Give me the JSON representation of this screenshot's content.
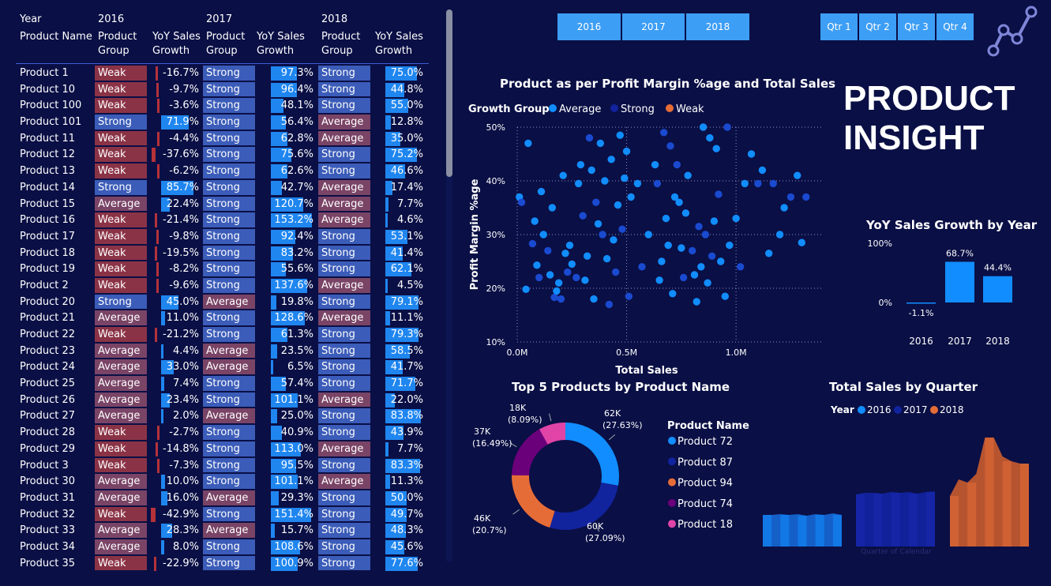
{
  "table": {
    "headers": {
      "year": "Year",
      "product_name": "Product Name",
      "years": [
        "2016",
        "2017",
        "2018"
      ],
      "product_group": [
        "Product",
        "Group"
      ],
      "yoy": [
        "YoY Sales",
        "Growth"
      ]
    },
    "rows": [
      [
        "Product 1",
        "Weak",
        "-16.7%",
        "Strong",
        "97.3%",
        "Strong",
        "75.0%"
      ],
      [
        "Product 10",
        "Weak",
        "-9.7%",
        "Strong",
        "96.4%",
        "Strong",
        "44.8%"
      ],
      [
        "Product 100",
        "Weak",
        "-3.6%",
        "Strong",
        "48.1%",
        "Strong",
        "55.0%"
      ],
      [
        "Product 101",
        "Strong",
        "71.9%",
        "Strong",
        "56.4%",
        "Average",
        "12.8%"
      ],
      [
        "Product 11",
        "Weak",
        "-4.4%",
        "Strong",
        "62.8%",
        "Average",
        "35.0%"
      ],
      [
        "Product 12",
        "Weak",
        "-37.6%",
        "Strong",
        "75.6%",
        "Strong",
        "75.2%"
      ],
      [
        "Product 13",
        "Weak",
        "-6.2%",
        "Strong",
        "62.6%",
        "Strong",
        "46.6%"
      ],
      [
        "Product 14",
        "Strong",
        "85.7%",
        "Strong",
        "42.7%",
        "Average",
        "17.4%"
      ],
      [
        "Product 15",
        "Average",
        "22.4%",
        "Strong",
        "120.7%",
        "Average",
        "7.7%"
      ],
      [
        "Product 16",
        "Weak",
        "-21.4%",
        "Strong",
        "153.2%",
        "Average",
        "4.6%"
      ],
      [
        "Product 17",
        "Weak",
        "-9.8%",
        "Strong",
        "92.4%",
        "Strong",
        "53.1%"
      ],
      [
        "Product 18",
        "Weak",
        "-19.5%",
        "Strong",
        "83.2%",
        "Strong",
        "41.4%"
      ],
      [
        "Product 19",
        "Weak",
        "-8.2%",
        "Strong",
        "55.6%",
        "Strong",
        "62.1%"
      ],
      [
        "Product 2",
        "Weak",
        "-9.6%",
        "Strong",
        "137.6%",
        "Average",
        "4.5%"
      ],
      [
        "Product 20",
        "Strong",
        "45.0%",
        "Average",
        "19.8%",
        "Strong",
        "79.1%"
      ],
      [
        "Product 21",
        "Average",
        "11.0%",
        "Strong",
        "128.6%",
        "Average",
        "11.1%"
      ],
      [
        "Product 22",
        "Weak",
        "-21.2%",
        "Strong",
        "61.3%",
        "Strong",
        "79.3%"
      ],
      [
        "Product 23",
        "Average",
        "4.4%",
        "Average",
        "23.5%",
        "Strong",
        "58.5%"
      ],
      [
        "Product 24",
        "Average",
        "33.0%",
        "Average",
        "6.5%",
        "Strong",
        "41.7%"
      ],
      [
        "Product 25",
        "Average",
        "7.4%",
        "Strong",
        "57.4%",
        "Strong",
        "71.7%"
      ],
      [
        "Product 26",
        "Average",
        "23.4%",
        "Strong",
        "101.1%",
        "Average",
        "22.0%"
      ],
      [
        "Product 27",
        "Average",
        "2.0%",
        "Average",
        "25.0%",
        "Strong",
        "83.8%"
      ],
      [
        "Product 28",
        "Weak",
        "-2.7%",
        "Strong",
        "40.9%",
        "Strong",
        "43.9%"
      ],
      [
        "Product 29",
        "Weak",
        "-14.8%",
        "Strong",
        "113.0%",
        "Average",
        "7.7%"
      ],
      [
        "Product 3",
        "Weak",
        "-7.3%",
        "Strong",
        "95.5%",
        "Strong",
        "83.3%"
      ],
      [
        "Product 30",
        "Average",
        "10.0%",
        "Strong",
        "101.1%",
        "Average",
        "11.3%"
      ],
      [
        "Product 31",
        "Average",
        "16.0%",
        "Average",
        "29.3%",
        "Strong",
        "50.0%"
      ],
      [
        "Product 32",
        "Weak",
        "-42.9%",
        "Strong",
        "151.4%",
        "Strong",
        "49.7%"
      ],
      [
        "Product 33",
        "Average",
        "28.3%",
        "Average",
        "15.7%",
        "Strong",
        "48.3%"
      ],
      [
        "Product 34",
        "Average",
        "8.0%",
        "Strong",
        "108.6%",
        "Strong",
        "45.6%"
      ],
      [
        "Product 35",
        "Weak",
        "-22.9%",
        "Strong",
        "100.9%",
        "Strong",
        "77.6%"
      ]
    ]
  },
  "slicers": {
    "years": [
      "2016",
      "2017",
      "2018"
    ],
    "quarters": [
      "Qtr 1",
      "Qtr 2",
      "Qtr 3",
      "Qtr 4"
    ]
  },
  "dashboard_title": [
    "PRODUCT",
    "INSIGHT"
  ],
  "colors": {
    "background": "#0a0f45",
    "average": "#118dff",
    "strong": "#12239e",
    "weak": "#e66c37",
    "product74": "#6b007b",
    "product18": "#e044a7",
    "weak_cell": "#8b3346",
    "strong_cell": "#3b5cb8",
    "average_cell": "#7a4466"
  },
  "chart_data": [
    {
      "type": "scatter",
      "title": "Product as per Profit Margin %age and Total Sales",
      "xlabel": "Total Sales",
      "ylabel": "Profit Margin %age",
      "xlim": [
        0,
        1.4
      ],
      "ylim": [
        10,
        50
      ],
      "x_ticks": [
        "0.0M",
        "0.5M",
        "1.0M"
      ],
      "y_ticks": [
        "10%",
        "20%",
        "30%",
        "40%",
        "50%"
      ],
      "grid": true,
      "legend_title": "Growth Group",
      "legend": [
        "Average",
        "Strong",
        "Weak"
      ],
      "legend_placement": "top-left",
      "points": [
        [
          0.01,
          37
        ],
        [
          0.02,
          36
        ],
        [
          0.04,
          19.8
        ],
        [
          0.05,
          47
        ],
        [
          0.07,
          28.3
        ],
        [
          0.08,
          32.5
        ],
        [
          0.09,
          24.3
        ],
        [
          0.1,
          22
        ],
        [
          0.11,
          38
        ],
        [
          0.12,
          30
        ],
        [
          0.14,
          27
        ],
        [
          0.15,
          22.5
        ],
        [
          0.16,
          35
        ],
        [
          0.17,
          18.3
        ],
        [
          0.18,
          19.5
        ],
        [
          0.19,
          21
        ],
        [
          0.2,
          18
        ],
        [
          0.21,
          41
        ],
        [
          0.22,
          26.5
        ],
        [
          0.23,
          23
        ],
        [
          0.24,
          28
        ],
        [
          0.25,
          24.5
        ],
        [
          0.27,
          22
        ],
        [
          0.28,
          39.5
        ],
        [
          0.29,
          43
        ],
        [
          0.3,
          33.5
        ],
        [
          0.31,
          21.5
        ],
        [
          0.32,
          26
        ],
        [
          0.33,
          48
        ],
        [
          0.34,
          42
        ],
        [
          0.35,
          18
        ],
        [
          0.36,
          36
        ],
        [
          0.37,
          32
        ],
        [
          0.38,
          47
        ],
        [
          0.39,
          30
        ],
        [
          0.4,
          40
        ],
        [
          0.41,
          25.5
        ],
        [
          0.42,
          17
        ],
        [
          0.43,
          44
        ],
        [
          0.44,
          29
        ],
        [
          0.45,
          23
        ],
        [
          0.46,
          35.5
        ],
        [
          0.47,
          48.5
        ],
        [
          0.48,
          31
        ],
        [
          0.49,
          40.5
        ],
        [
          0.5,
          45.5
        ],
        [
          0.51,
          18.5
        ],
        [
          0.52,
          37
        ],
        [
          0.55,
          39.5
        ],
        [
          0.57,
          24
        ],
        [
          0.6,
          30
        ],
        [
          0.63,
          43
        ],
        [
          0.64,
          39.5
        ],
        [
          0.65,
          21.5
        ],
        [
          0.66,
          25
        ],
        [
          0.67,
          49
        ],
        [
          0.68,
          33
        ],
        [
          0.69,
          28
        ],
        [
          0.7,
          46.5
        ],
        [
          0.71,
          19
        ],
        [
          0.72,
          37
        ],
        [
          0.73,
          43
        ],
        [
          0.74,
          36
        ],
        [
          0.75,
          27.5
        ],
        [
          0.76,
          22
        ],
        [
          0.77,
          34
        ],
        [
          0.78,
          41
        ],
        [
          0.8,
          27
        ],
        [
          0.81,
          22.5
        ],
        [
          0.82,
          17.5
        ],
        [
          0.83,
          31.5
        ],
        [
          0.84,
          24
        ],
        [
          0.85,
          50
        ],
        [
          0.86,
          30
        ],
        [
          0.87,
          21
        ],
        [
          0.88,
          48
        ],
        [
          0.89,
          26
        ],
        [
          0.9,
          32.5
        ],
        [
          0.91,
          46
        ],
        [
          0.92,
          37.5
        ],
        [
          0.93,
          25
        ],
        [
          0.95,
          18.5
        ],
        [
          0.96,
          50
        ],
        [
          0.97,
          28
        ],
        [
          1.0,
          33
        ],
        [
          1.02,
          24
        ],
        [
          1.04,
          39.5
        ],
        [
          1.07,
          45
        ],
        [
          1.1,
          39.5
        ],
        [
          1.12,
          42
        ],
        [
          1.15,
          26.5
        ],
        [
          1.17,
          39.5
        ],
        [
          1.2,
          30
        ],
        [
          1.22,
          35
        ],
        [
          1.25,
          37
        ],
        [
          1.28,
          41
        ],
        [
          1.3,
          28.5
        ],
        [
          1.32,
          37
        ]
      ]
    },
    {
      "type": "bar",
      "title": "YoY Sales Growth by Year",
      "categories": [
        "2016",
        "2017",
        "2018"
      ],
      "values": [
        -1.1,
        68.7,
        44.4
      ],
      "data_labels": [
        "-1.1%",
        "68.7%",
        "44.4%"
      ],
      "y_ticks": [
        "100%",
        "0%"
      ],
      "ylim": [
        -20,
        100
      ]
    },
    {
      "type": "pie",
      "title": "Top 5 Products by Product Name",
      "legend_title": "Product Name",
      "labels": [
        "Product 72",
        "Product 87",
        "Product 94",
        "Product 74",
        "Product 18"
      ],
      "values": [
        62,
        60,
        46,
        37,
        18
      ],
      "percentages": [
        "27.63%",
        "27.09%",
        "20.7%",
        "16.49%",
        "8.09%"
      ],
      "value_labels": [
        "62K",
        "60K",
        "46K",
        "37K",
        "18K"
      ]
    },
    {
      "type": "area",
      "title": "Total Sales by Quarter",
      "legend_title": "Year",
      "legend": [
        "2016",
        "2017",
        "2018"
      ],
      "xlabel": "Quarter of Calendar",
      "series": [
        {
          "name": "2016",
          "values": [
            40,
            40,
            41,
            40,
            41,
            39,
            41,
            40,
            42,
            40
          ]
        },
        {
          "name": "2017",
          "values": [
            66,
            68,
            68,
            67,
            69,
            68,
            69,
            67,
            69,
            70
          ]
        },
        {
          "name": "2018",
          "values": [
            64,
            85,
            81,
            92,
            138,
            138,
            114,
            108,
            105,
            105
          ]
        }
      ]
    }
  ]
}
